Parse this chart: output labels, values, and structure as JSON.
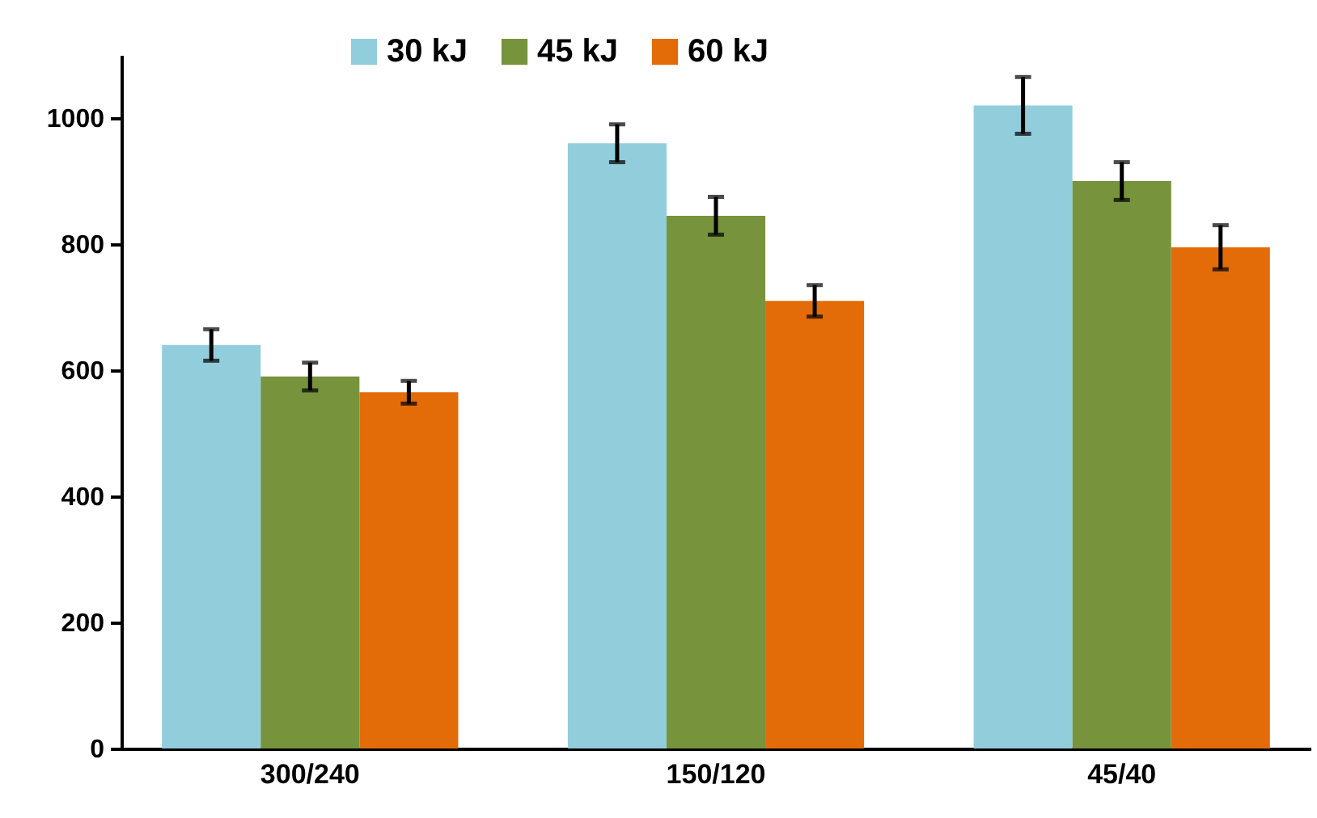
{
  "chart_data": {
    "type": "bar",
    "categories": [
      "300/240",
      "150/120",
      "45/40"
    ],
    "series": [
      {
        "name": "30 kJ",
        "color": "#92cddc",
        "values": [
          640,
          960,
          1020
        ],
        "errors": [
          25,
          30,
          45
        ]
      },
      {
        "name": "45 kJ",
        "color": "#77933c",
        "values": [
          590,
          845,
          900
        ],
        "errors": [
          22,
          30,
          30
        ]
      },
      {
        "name": "60 kJ",
        "color": "#e36c09",
        "values": [
          565,
          710,
          795
        ],
        "errors": [
          18,
          25,
          35
        ]
      }
    ],
    "ylim": [
      0,
      1100
    ],
    "yticks": [
      0,
      200,
      400,
      600,
      800,
      1000
    ],
    "grid": false,
    "legend": "top"
  }
}
